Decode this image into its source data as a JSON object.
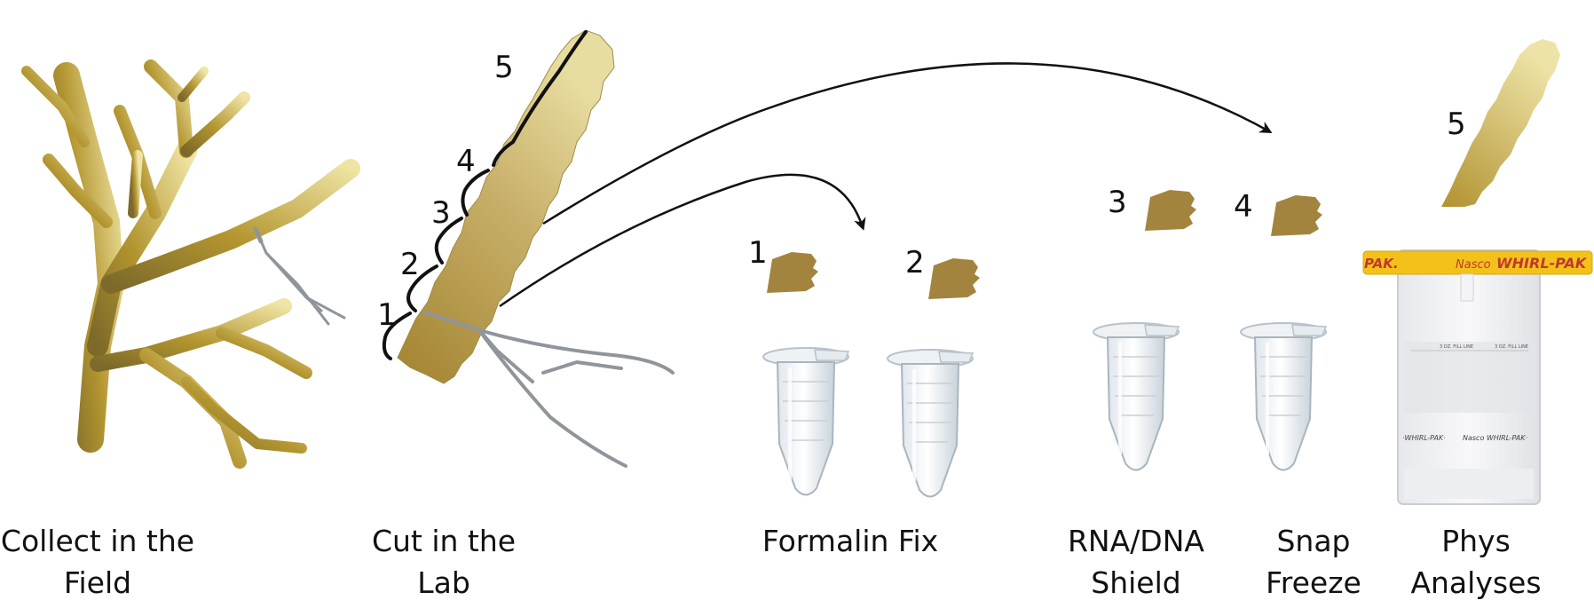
{
  "colors": {
    "coral_dark": "#9a7f2a",
    "coral_mid": "#b89a45",
    "coral_light": "#ece09c",
    "fragment": "#a08245",
    "bag_band": "#f2c21a",
    "bag_text": "#c0392b"
  },
  "stages": [
    {
      "id": "collect",
      "line1": "Collect in the",
      "line2": "Field"
    },
    {
      "id": "cut",
      "line1": "Cut in the",
      "line2": "Lab"
    },
    {
      "id": "formalin",
      "line1": "Formalin Fix",
      "line2": ""
    },
    {
      "id": "rnadna",
      "line1": "RNA/DNA",
      "line2": "Shield"
    },
    {
      "id": "snap",
      "line1": "Snap",
      "line2": "Freeze"
    },
    {
      "id": "phys",
      "line1": "Phys",
      "line2": "Analyses"
    }
  ],
  "segments": [
    "1",
    "2",
    "3",
    "4",
    "5"
  ],
  "fragments": [
    "1",
    "2",
    "3",
    "4",
    "5"
  ],
  "bag": {
    "brand": "Nasco",
    "name": "WHIRL-PAK",
    "fill_line": "3 OZ. FILL LINE"
  },
  "icons": {
    "branch": "branching-coral-icon",
    "scissors": "bone-cutter-icon",
    "tube": "microcentrifuge-tube-icon",
    "bag": "whirl-pak-bag-icon",
    "arrow": "curved-arrow-icon"
  }
}
